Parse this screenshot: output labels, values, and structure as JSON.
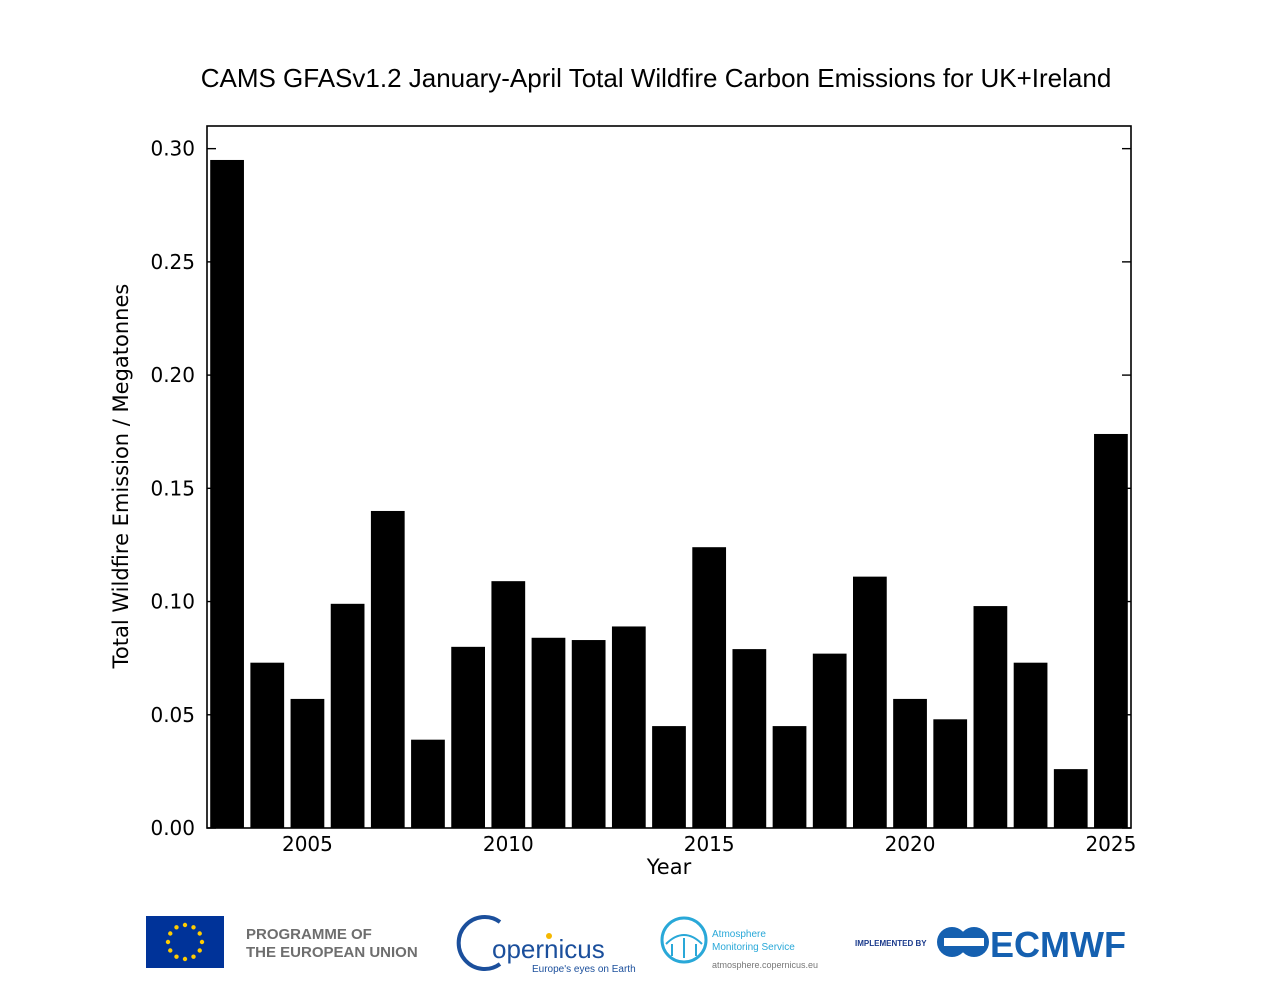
{
  "chart_data": {
    "type": "bar",
    "title": "CAMS GFASv1.2 January-April Total Wildfire Carbon Emissions for UK+Ireland",
    "xlabel": "Year",
    "ylabel": "Total Wildfire Emission / Megatonnes",
    "x": [
      2003,
      2004,
      2005,
      2006,
      2007,
      2008,
      2009,
      2010,
      2011,
      2012,
      2013,
      2014,
      2015,
      2016,
      2017,
      2018,
      2019,
      2020,
      2021,
      2022,
      2023,
      2024,
      2025
    ],
    "values": [
      0.295,
      0.073,
      0.057,
      0.099,
      0.14,
      0.039,
      0.08,
      0.109,
      0.084,
      0.083,
      0.089,
      0.045,
      0.124,
      0.079,
      0.045,
      0.077,
      0.111,
      0.057,
      0.048,
      0.098,
      0.073,
      0.026,
      0.174
    ],
    "xlim": [
      2002.5,
      2025.5
    ],
    "ylim": [
      0.0,
      0.31
    ],
    "xticks": [
      "2005",
      "2010",
      "2015",
      "2020",
      "2025"
    ],
    "yticks": [
      "0.00",
      "0.05",
      "0.10",
      "0.15",
      "0.20",
      "0.25",
      "0.30"
    ],
    "bar_color": "#000000",
    "grid": false
  },
  "footer": {
    "eu_line1": "PROGRAMME OF",
    "eu_line2": "THE EUROPEAN UNION",
    "copernicus_name": "opernicus",
    "copernicus_tagline": "Europe's eyes on Earth",
    "cams_line1": "Atmosphere",
    "cams_line2": "Monitoring Service",
    "cams_url": "atmosphere.copernicus.eu",
    "implemented_by": "IMPLEMENTED BY",
    "ecmwf": "ECMWF"
  }
}
